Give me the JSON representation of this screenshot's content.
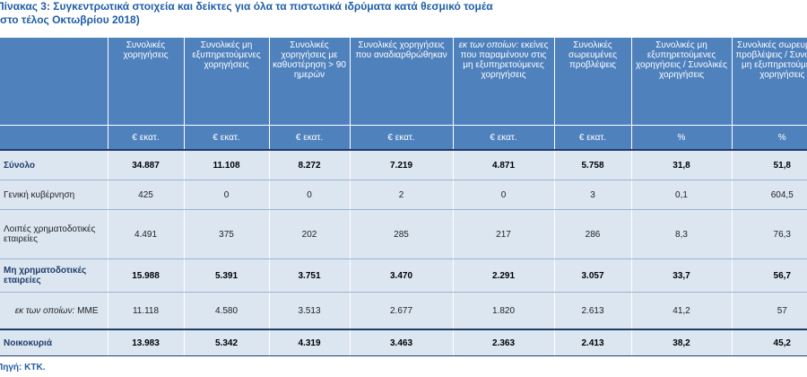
{
  "title": {
    "line1": "Πίνακας 3: Συγκεντρωτικά στοιχεία και δείκτες για όλα τα πιστωτικά ιδρύματα κατά θεσμικό τομέα",
    "line2": "(στο τέλος Οκτωβρίου 2018)"
  },
  "headers": [
    "Συνολικές χορηγήσεις",
    "Συνολικές μη εξυπηρετούμενες χορηγήσεις",
    "Συνολικές χορηγήσεις με καθυστέρηση > 90 ημερών",
    "Συνολικές χορηγήσεις που αναδιαρθρώθηκαν",
    "εκ των οποίων: εκείνες που παραμένουν στις μη εξυπηρετούμενες χορηγήσεις",
    "Συνολικές σωρευμένες προβλέψεις",
    "Συνολικές μη εξυπηρετούμενες χορηγήσεις / Συνολικές χορηγήσεις",
    "Συνολικές σωρευμένες προβλέψεις / Συνολικές μη εξυπηρετούμενες χορηγήσεις"
  ],
  "header5_italic": "εκ των οποίων:",
  "header5_rest": "εκείνες που παραμένουν στις μη εξυπηρετούμενες χορηγήσεις",
  "units": [
    "€ εκατ.",
    "€ εκατ.",
    "€ εκατ.",
    "€ εκατ.",
    "€ εκατ.",
    "€ εκατ.",
    "%",
    "%"
  ],
  "rows": [
    {
      "label": "Σύνολο",
      "values": [
        "34.887",
        "11.108",
        "8.272",
        "7.219",
        "4.871",
        "5.758",
        "31,8",
        "51,8"
      ]
    },
    {
      "label": "Γενική κυβέρνηση",
      "values": [
        "425",
        "0",
        "0",
        "2",
        "0",
        "3",
        "0,1",
        "604,5"
      ]
    },
    {
      "label": "Λοιπές χρηματοδοτικές εταιρείες",
      "values": [
        "4.491",
        "375",
        "202",
        "285",
        "217",
        "286",
        "8,3",
        "76,3"
      ]
    },
    {
      "label": "Μη χρηματοδοτικές εταιρείες",
      "values": [
        "15.988",
        "5.391",
        "3.751",
        "3.470",
        "2.291",
        "3.057",
        "33,7",
        "56,7"
      ]
    },
    {
      "label_italic": "εκ των οποίων:",
      "label": "ΜΜΕ",
      "values": [
        "11.118",
        "4.580",
        "3.513",
        "2.677",
        "1.820",
        "2.613",
        "41,2",
        "57"
      ]
    },
    {
      "label": "Νοικοκυριά",
      "values": [
        "13.983",
        "5.342",
        "4.319",
        "3.463",
        "2.363",
        "2.413",
        "38,2",
        "45,2"
      ]
    }
  ],
  "source": "Πηγή: ΚΤΚ."
}
